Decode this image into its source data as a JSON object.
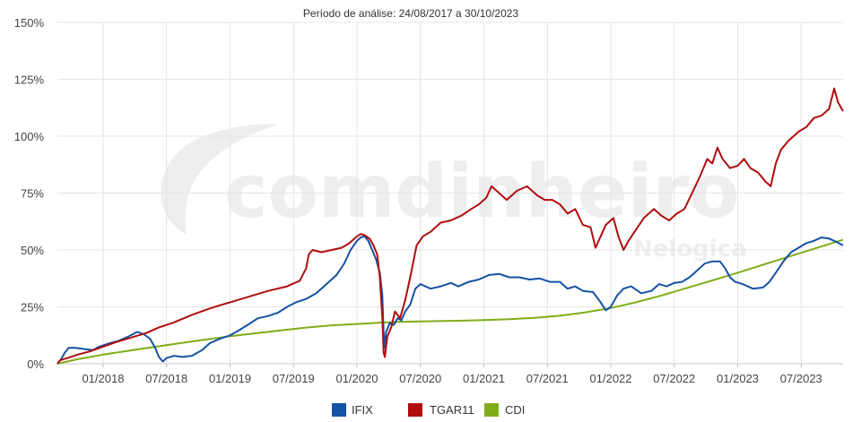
{
  "watermark": {
    "brand": "comdinheiro",
    "sub": "Nelogica"
  },
  "chart_data": {
    "type": "line",
    "title": "Período de análise: 24/08/2017 a 30/10/2023",
    "xlabel": "",
    "ylabel": "",
    "x_range": [
      2017.64,
      2023.83
    ],
    "ylim": [
      0,
      150
    ],
    "y_ticks": [
      0,
      25,
      50,
      75,
      100,
      125,
      150
    ],
    "y_tick_labels": [
      "0%",
      "25%",
      "50%",
      "75%",
      "100%",
      "125%",
      "150%"
    ],
    "x_ticks": [
      2018.0,
      2018.5,
      2019.0,
      2019.5,
      2020.0,
      2020.5,
      2021.0,
      2021.5,
      2022.0,
      2022.5,
      2023.0,
      2023.5
    ],
    "x_tick_labels": [
      "01/2018",
      "07/2018",
      "01/2019",
      "07/2019",
      "01/2020",
      "07/2020",
      "01/2021",
      "07/2021",
      "01/2022",
      "07/2022",
      "01/2023",
      "07/2023"
    ],
    "grid": true,
    "legend_position": "bottom-center",
    "series": [
      {
        "name": "IFIX",
        "color": "#1552a3",
        "points": [
          [
            2017.64,
            0
          ],
          [
            2017.67,
            2
          ],
          [
            2017.7,
            5
          ],
          [
            2017.73,
            7
          ],
          [
            2017.78,
            7
          ],
          [
            2017.85,
            6.5
          ],
          [
            2017.92,
            6
          ],
          [
            2017.97,
            7.5
          ],
          [
            2018.05,
            9
          ],
          [
            2018.12,
            10
          ],
          [
            2018.2,
            12
          ],
          [
            2018.27,
            14
          ],
          [
            2018.32,
            13
          ],
          [
            2018.37,
            11
          ],
          [
            2018.41,
            7
          ],
          [
            2018.44,
            3
          ],
          [
            2018.47,
            1
          ],
          [
            2018.5,
            2.5
          ],
          [
            2018.56,
            3.5
          ],
          [
            2018.62,
            3
          ],
          [
            2018.7,
            3.5
          ],
          [
            2018.78,
            6
          ],
          [
            2018.84,
            9
          ],
          [
            2018.92,
            11
          ],
          [
            2019.0,
            12.5
          ],
          [
            2019.08,
            15
          ],
          [
            2019.15,
            17.5
          ],
          [
            2019.22,
            20
          ],
          [
            2019.3,
            21
          ],
          [
            2019.38,
            22.5
          ],
          [
            2019.45,
            25
          ],
          [
            2019.52,
            27
          ],
          [
            2019.6,
            28.5
          ],
          [
            2019.68,
            31
          ],
          [
            2019.76,
            35
          ],
          [
            2019.84,
            39
          ],
          [
            2019.9,
            44
          ],
          [
            2019.95,
            50
          ],
          [
            2020.0,
            54
          ],
          [
            2020.03,
            55.5
          ],
          [
            2020.06,
            56
          ],
          [
            2020.09,
            54
          ],
          [
            2020.12,
            50
          ],
          [
            2020.15,
            46
          ],
          [
            2020.18,
            40
          ],
          [
            2020.2,
            30
          ],
          [
            2020.21,
            14
          ],
          [
            2020.22,
            7
          ],
          [
            2020.23,
            14
          ],
          [
            2020.26,
            18
          ],
          [
            2020.29,
            17
          ],
          [
            2020.32,
            20
          ],
          [
            2020.35,
            19
          ],
          [
            2020.38,
            23
          ],
          [
            2020.42,
            26
          ],
          [
            2020.46,
            33
          ],
          [
            2020.5,
            35
          ],
          [
            2020.58,
            33
          ],
          [
            2020.66,
            34
          ],
          [
            2020.74,
            35.5
          ],
          [
            2020.8,
            34
          ],
          [
            2020.88,
            36
          ],
          [
            2020.96,
            37
          ],
          [
            2021.04,
            39
          ],
          [
            2021.12,
            39.5
          ],
          [
            2021.2,
            38
          ],
          [
            2021.28,
            38
          ],
          [
            2021.36,
            37
          ],
          [
            2021.44,
            37.5
          ],
          [
            2021.52,
            36
          ],
          [
            2021.6,
            36
          ],
          [
            2021.66,
            33
          ],
          [
            2021.72,
            34
          ],
          [
            2021.78,
            32
          ],
          [
            2021.86,
            31.5
          ],
          [
            2021.92,
            27
          ],
          [
            2021.96,
            23.5
          ],
          [
            2022.0,
            25
          ],
          [
            2022.05,
            30
          ],
          [
            2022.1,
            33
          ],
          [
            2022.16,
            34
          ],
          [
            2022.24,
            31
          ],
          [
            2022.32,
            32
          ],
          [
            2022.38,
            35
          ],
          [
            2022.44,
            34
          ],
          [
            2022.5,
            35.5
          ],
          [
            2022.56,
            36
          ],
          [
            2022.62,
            38
          ],
          [
            2022.68,
            41
          ],
          [
            2022.74,
            44
          ],
          [
            2022.8,
            45
          ],
          [
            2022.86,
            45
          ],
          [
            2022.9,
            42
          ],
          [
            2022.94,
            38
          ],
          [
            2022.98,
            36
          ],
          [
            2023.04,
            35
          ],
          [
            2023.12,
            33
          ],
          [
            2023.2,
            33.5
          ],
          [
            2023.25,
            36
          ],
          [
            2023.3,
            40
          ],
          [
            2023.36,
            45
          ],
          [
            2023.42,
            49
          ],
          [
            2023.48,
            51
          ],
          [
            2023.54,
            53
          ],
          [
            2023.6,
            54
          ],
          [
            2023.66,
            55.5
          ],
          [
            2023.72,
            55
          ],
          [
            2023.78,
            53.5
          ],
          [
            2023.83,
            52
          ]
        ]
      },
      {
        "name": "TGAR11",
        "color": "#b00d0d",
        "points": [
          [
            2017.64,
            0
          ],
          [
            2017.66,
            1.5
          ],
          [
            2017.72,
            2.5
          ],
          [
            2017.8,
            4
          ],
          [
            2017.9,
            5.5
          ],
          [
            2018.0,
            7.5
          ],
          [
            2018.1,
            9.5
          ],
          [
            2018.22,
            11.5
          ],
          [
            2018.34,
            13.5
          ],
          [
            2018.44,
            16
          ],
          [
            2018.55,
            18
          ],
          [
            2018.7,
            21.5
          ],
          [
            2018.85,
            24.5
          ],
          [
            2019.0,
            27
          ],
          [
            2019.15,
            29.5
          ],
          [
            2019.3,
            32
          ],
          [
            2019.45,
            34
          ],
          [
            2019.55,
            36.5
          ],
          [
            2019.6,
            42
          ],
          [
            2019.62,
            48
          ],
          [
            2019.65,
            50
          ],
          [
            2019.72,
            49
          ],
          [
            2019.8,
            50
          ],
          [
            2019.88,
            51
          ],
          [
            2019.94,
            53
          ],
          [
            2020.0,
            56
          ],
          [
            2020.03,
            57
          ],
          [
            2020.06,
            56.5
          ],
          [
            2020.1,
            55
          ],
          [
            2020.13,
            52
          ],
          [
            2020.16,
            48
          ],
          [
            2020.18,
            38
          ],
          [
            2020.2,
            20
          ],
          [
            2020.21,
            5
          ],
          [
            2020.22,
            3
          ],
          [
            2020.24,
            12
          ],
          [
            2020.27,
            16
          ],
          [
            2020.3,
            23
          ],
          [
            2020.34,
            20
          ],
          [
            2020.38,
            28
          ],
          [
            2020.42,
            38
          ],
          [
            2020.47,
            52
          ],
          [
            2020.52,
            56
          ],
          [
            2020.58,
            58
          ],
          [
            2020.66,
            62
          ],
          [
            2020.74,
            63
          ],
          [
            2020.82,
            65
          ],
          [
            2020.9,
            68
          ],
          [
            2020.96,
            70
          ],
          [
            2021.02,
            73
          ],
          [
            2021.06,
            78
          ],
          [
            2021.12,
            75
          ],
          [
            2021.18,
            72
          ],
          [
            2021.26,
            76
          ],
          [
            2021.34,
            78
          ],
          [
            2021.42,
            74
          ],
          [
            2021.48,
            72
          ],
          [
            2021.54,
            72
          ],
          [
            2021.6,
            70
          ],
          [
            2021.66,
            66
          ],
          [
            2021.72,
            68
          ],
          [
            2021.78,
            61
          ],
          [
            2021.84,
            60
          ],
          [
            2021.88,
            51
          ],
          [
            2021.92,
            56
          ],
          [
            2021.96,
            61
          ],
          [
            2022.02,
            64
          ],
          [
            2022.06,
            56
          ],
          [
            2022.1,
            50
          ],
          [
            2022.14,
            54
          ],
          [
            2022.2,
            59
          ],
          [
            2022.26,
            64
          ],
          [
            2022.34,
            68
          ],
          [
            2022.4,
            65
          ],
          [
            2022.46,
            63
          ],
          [
            2022.52,
            66
          ],
          [
            2022.58,
            68
          ],
          [
            2022.64,
            75
          ],
          [
            2022.7,
            82
          ],
          [
            2022.76,
            90
          ],
          [
            2022.8,
            88
          ],
          [
            2022.84,
            95
          ],
          [
            2022.88,
            90
          ],
          [
            2022.94,
            86
          ],
          [
            2023.0,
            87
          ],
          [
            2023.05,
            90
          ],
          [
            2023.1,
            86
          ],
          [
            2023.16,
            84
          ],
          [
            2023.22,
            80
          ],
          [
            2023.26,
            78
          ],
          [
            2023.3,
            88
          ],
          [
            2023.34,
            94
          ],
          [
            2023.4,
            98
          ],
          [
            2023.48,
            102
          ],
          [
            2023.54,
            104
          ],
          [
            2023.6,
            108
          ],
          [
            2023.66,
            109
          ],
          [
            2023.72,
            112
          ],
          [
            2023.76,
            121
          ],
          [
            2023.79,
            115
          ],
          [
            2023.83,
            111
          ]
        ]
      },
      {
        "name": "CDI",
        "color": "#7fad1a",
        "points": [
          [
            2017.64,
            0
          ],
          [
            2017.8,
            2
          ],
          [
            2018.0,
            4
          ],
          [
            2018.2,
            5.7
          ],
          [
            2018.4,
            7.4
          ],
          [
            2018.6,
            9
          ],
          [
            2018.8,
            10.6
          ],
          [
            2019.0,
            12.1
          ],
          [
            2019.2,
            13.4
          ],
          [
            2019.4,
            14.7
          ],
          [
            2019.6,
            15.9
          ],
          [
            2019.8,
            16.9
          ],
          [
            2020.0,
            17.5
          ],
          [
            2020.2,
            18.1
          ],
          [
            2020.4,
            18.5
          ],
          [
            2020.6,
            18.7
          ],
          [
            2020.8,
            18.9
          ],
          [
            2021.0,
            19.2
          ],
          [
            2021.2,
            19.6
          ],
          [
            2021.4,
            20.2
          ],
          [
            2021.6,
            21.1
          ],
          [
            2021.8,
            22.6
          ],
          [
            2022.0,
            24.5
          ],
          [
            2022.2,
            27
          ],
          [
            2022.4,
            30
          ],
          [
            2022.6,
            33.3
          ],
          [
            2022.8,
            36.6
          ],
          [
            2023.0,
            40
          ],
          [
            2023.2,
            43.5
          ],
          [
            2023.4,
            47
          ],
          [
            2023.6,
            50.5
          ],
          [
            2023.83,
            54.5
          ]
        ]
      }
    ]
  }
}
